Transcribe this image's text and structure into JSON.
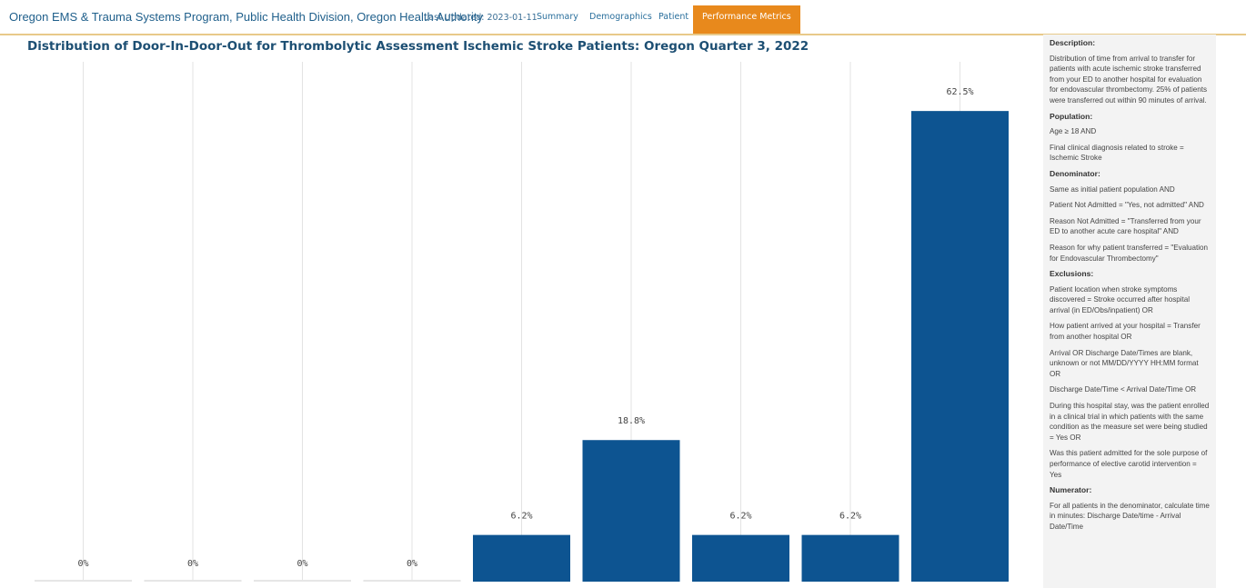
{
  "header": {
    "brand": "Oregon EMS & Trauma Systems Program, Public Health Division, Oregon Health Authority",
    "last_updated": "Last Updated: 2023-01-11",
    "tabs": [
      {
        "label": "Summary"
      },
      {
        "label": "Demographics"
      },
      {
        "label": "Patient"
      },
      {
        "label": "Performance Metrics"
      }
    ],
    "active_tab": "Performance Metrics"
  },
  "colors": {
    "bar": "#0d5491",
    "active_tab": "#e8891c",
    "title": "#1d4f73",
    "gridline": "#e3e3e3"
  },
  "chart_data": {
    "type": "bar",
    "title": "Distribution of Door-In-Door-Out for Thrombolytic Assessment Ischemic Stroke Patients: Oregon Quarter 3, 2022",
    "values": [
      0,
      0,
      0,
      0,
      6.2,
      18.8,
      6.2,
      6.2,
      62.5
    ],
    "value_labels": [
      "0%",
      "0%",
      "0%",
      "0%",
      "6.2%",
      "18.8%",
      "6.2%",
      "6.2%",
      "62.5%"
    ],
    "ylim": [
      0,
      70
    ],
    "grid": "vertical gridlines",
    "legend": "none"
  },
  "panel": {
    "blocks": [
      {
        "kind": "h",
        "text": "Description:"
      },
      {
        "kind": "p",
        "text": "Distribution of time from arrival to transfer for patients with acute ischemic stroke transferred from your ED to another hospital for evaluation for endovascular thrombectomy. 25% of patients were transferred out within 90 minutes of arrival."
      },
      {
        "kind": "h",
        "text": "Population:"
      },
      {
        "kind": "p",
        "text": "Age ≥ 18 AND"
      },
      {
        "kind": "p",
        "text": "Final clinical diagnosis related to stroke = Ischemic Stroke"
      },
      {
        "kind": "h",
        "text": "Denominator:"
      },
      {
        "kind": "p",
        "text": "Same as initial patient population AND"
      },
      {
        "kind": "p",
        "text": "Patient Not Admitted = \"Yes, not admitted\" AND"
      },
      {
        "kind": "p",
        "text": "Reason Not Admitted = \"Transferred from your ED to another acute care hospital\" AND"
      },
      {
        "kind": "p",
        "text": "Reason for why patient transferred = \"Evaluation for Endovascular Thrombectomy\""
      },
      {
        "kind": "h",
        "text": "Exclusions:"
      },
      {
        "kind": "p",
        "text": "Patient location when stroke symptoms discovered = Stroke occurred after hospital arrival (in ED/Obs/inpatient) OR"
      },
      {
        "kind": "p",
        "text": "How patient arrived at your hospital = Transfer from another hospital OR"
      },
      {
        "kind": "p",
        "text": "Arrival OR Discharge Date/Times are blank, unknown or not MM/DD/YYYY HH:MM format OR"
      },
      {
        "kind": "p",
        "text": "Discharge Date/Time < Arrival Date/Time OR"
      },
      {
        "kind": "p",
        "text": "During this hospital stay, was the patient enrolled in a clinical trial in which patients with the same condition as the measure set were being studied = Yes OR"
      },
      {
        "kind": "p",
        "text": "Was this patient admitted for the sole purpose of performance of elective carotid intervention = Yes"
      },
      {
        "kind": "h",
        "text": "Numerator:"
      },
      {
        "kind": "p",
        "text": "For all patients in the denominator, calculate time in minutes: Discharge Date/time - Arrival Date/Time"
      }
    ]
  }
}
